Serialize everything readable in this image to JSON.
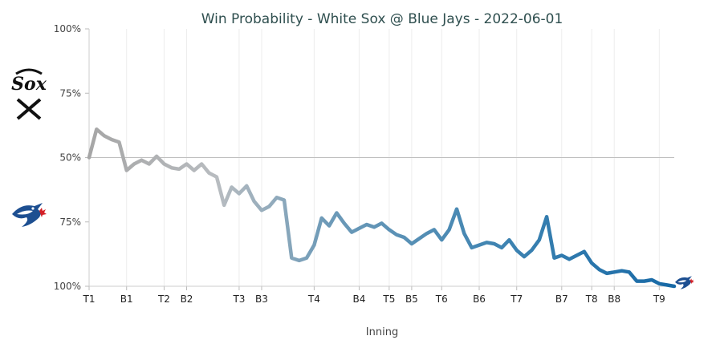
{
  "chart_data": {
    "type": "line",
    "title": "Win Probability - White Sox @ Blue Jays - 2022-06-01",
    "xlabel": "Inning",
    "ylabel": "",
    "y_tick_labels": [
      "100%",
      "75%",
      "50%",
      "75%",
      "100%"
    ],
    "teams": {
      "top": {
        "name": "White Sox",
        "logo_text": "Sox",
        "color": "#999999"
      },
      "bottom": {
        "name": "Blue Jays",
        "color": "#1f6fa5"
      }
    },
    "inning_labels": [
      {
        "label": "T1",
        "x": 0
      },
      {
        "label": "B1",
        "x": 5
      },
      {
        "label": "T2",
        "x": 10
      },
      {
        "label": "B2",
        "x": 13
      },
      {
        "label": "T3",
        "x": 20
      },
      {
        "label": "B3",
        "x": 23
      },
      {
        "label": "T4",
        "x": 30
      },
      {
        "label": "B4",
        "x": 36
      },
      {
        "label": "T5",
        "x": 40
      },
      {
        "label": "B5",
        "x": 43
      },
      {
        "label": "T6",
        "x": 47
      },
      {
        "label": "B6",
        "x": 52
      },
      {
        "label": "T7",
        "x": 57
      },
      {
        "label": "B7",
        "x": 63
      },
      {
        "label": "T8",
        "x": 67
      },
      {
        "label": "B8",
        "x": 70
      },
      {
        "label": "T9",
        "x": 76
      }
    ],
    "x_range": [
      0,
      78
    ],
    "ylim": [
      -50,
      50
    ],
    "series": [
      {
        "name": "White Sox win probability (centered at 50%)",
        "x": [
          0,
          1,
          2,
          3,
          4,
          5,
          6,
          7,
          8,
          9,
          10,
          11,
          12,
          13,
          14,
          15,
          16,
          17,
          18,
          19,
          20,
          21,
          22,
          23,
          24,
          25,
          26,
          27,
          28,
          29,
          30,
          31,
          32,
          33,
          34,
          35,
          36,
          37,
          38,
          39,
          40,
          41,
          42,
          43,
          44,
          45,
          46,
          47,
          48,
          49,
          50,
          51,
          52,
          53,
          54,
          55,
          56,
          57,
          58,
          59,
          60,
          61,
          62,
          63,
          64,
          65,
          66,
          67,
          68,
          69,
          70,
          71,
          72,
          73,
          74,
          75,
          76,
          77,
          78
        ],
        "values": [
          0,
          11,
          8.5,
          7,
          6,
          -5,
          -2.5,
          -1,
          -2.5,
          0.5,
          -2.5,
          -4,
          -4.5,
          -2.5,
          -5,
          -2.5,
          -6,
          -7.5,
          -18.5,
          -11.5,
          -14,
          -11,
          -17,
          -20.5,
          -19,
          -15.5,
          -16.5,
          -39,
          -40,
          -39,
          -34,
          -23.5,
          -26.5,
          -21.5,
          -25.5,
          -29,
          -27.5,
          -26,
          -27,
          -25.5,
          -28,
          -30,
          -31,
          -33.5,
          -31.5,
          -29.5,
          -28,
          -32,
          -28,
          -20,
          -29.5,
          -35,
          -34,
          -33,
          -33.5,
          -35,
          -32,
          -36,
          -38.5,
          -36,
          -32,
          -23,
          -39,
          -38,
          -39.5,
          -38,
          -36.5,
          -41,
          -43.5,
          -45,
          -44.5,
          -44,
          -44.5,
          -48,
          -48,
          -47.5,
          -49,
          -49.5,
          -50
        ]
      }
    ]
  }
}
